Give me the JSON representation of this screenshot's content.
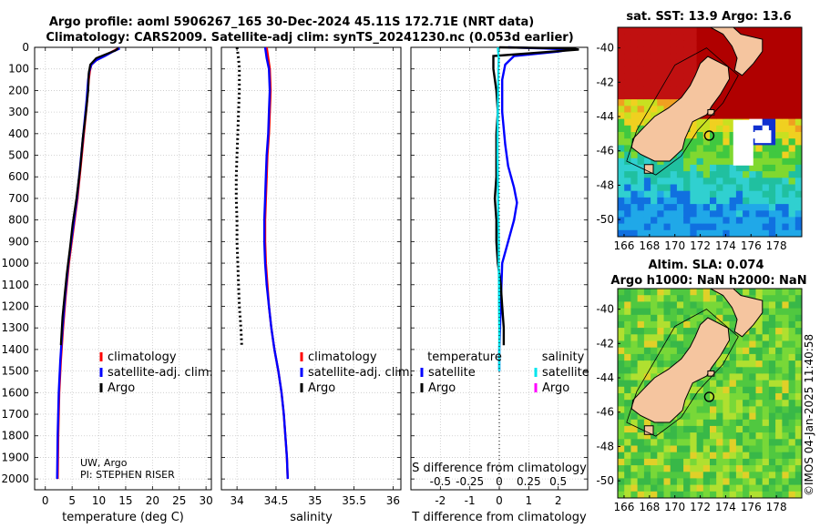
{
  "title_line1": "Argo profile: aoml 5906267_165 30-Dec-2024 45.11S 172.71E (NRT data)",
  "title_line2": "Climatology: CARS2009. Satellite-adj clim: synTS_20241230.nc (0.053d earlier)",
  "credit_lines": [
    "UW, Argo",
    "PI: STEPHEN RISER"
  ],
  "timestamp": "©IMOS 04-Jan-2025 11:40:58",
  "colors": {
    "climatology": "#ff0000",
    "satellite": "#0000ff",
    "argo": "#000000",
    "sat_salinity": "#00e5ee",
    "argo_salinity": "#ff00ff",
    "land": "#f5c59f"
  },
  "chart_data": [
    {
      "type": "line",
      "name": "temperature-profile",
      "xlabel": "temperature (deg C)",
      "xlim": [
        -2,
        31
      ],
      "xticks": [
        0,
        5,
        10,
        15,
        20,
        25,
        30
      ],
      "ylim": [
        0,
        2050
      ],
      "yticks": [
        0,
        100,
        200,
        300,
        400,
        500,
        600,
        700,
        800,
        900,
        1000,
        1100,
        1200,
        1300,
        1400,
        1500,
        1600,
        1700,
        1800,
        1900,
        2000
      ],
      "legend": [
        "climatology",
        "satellite-adj. clim.",
        "Argo"
      ],
      "series": [
        {
          "name": "climatology",
          "color": "#ff0000",
          "points": [
            [
              13.6,
              5
            ],
            [
              12.5,
              20
            ],
            [
              11.0,
              40
            ],
            [
              9.5,
              60
            ],
            [
              8.6,
              80
            ],
            [
              8.3,
              110
            ],
            [
              8.1,
              150
            ],
            [
              7.8,
              250
            ],
            [
              7.2,
              400
            ],
            [
              6.6,
              550
            ],
            [
              6.0,
              700
            ],
            [
              5.2,
              850
            ],
            [
              4.4,
              1000
            ],
            [
              3.8,
              1150
            ],
            [
              3.3,
              1300
            ],
            [
              2.9,
              1450
            ],
            [
              2.6,
              1600
            ],
            [
              2.4,
              1800
            ],
            [
              2.3,
              2000
            ]
          ]
        },
        {
          "name": "satellite-adj. clim.",
          "color": "#0000ff",
          "points": [
            [
              13.9,
              5
            ],
            [
              12.6,
              20
            ],
            [
              11.1,
              40
            ],
            [
              9.5,
              60
            ],
            [
              8.6,
              80
            ],
            [
              8.2,
              110
            ],
            [
              8.0,
              150
            ],
            [
              7.7,
              250
            ],
            [
              7.1,
              400
            ],
            [
              6.5,
              550
            ],
            [
              5.9,
              700
            ],
            [
              5.1,
              850
            ],
            [
              4.3,
              1000
            ],
            [
              3.7,
              1150
            ],
            [
              3.2,
              1300
            ],
            [
              2.8,
              1450
            ],
            [
              2.5,
              1600
            ],
            [
              2.3,
              1800
            ],
            [
              2.2,
              2000
            ]
          ]
        },
        {
          "name": "Argo",
          "color": "#000000",
          "points": [
            [
              13.6,
              5
            ],
            [
              13.0,
              15
            ],
            [
              11.5,
              30
            ],
            [
              9.5,
              50
            ],
            [
              8.4,
              80
            ],
            [
              8.1,
              120
            ],
            [
              8.0,
              200
            ],
            [
              7.6,
              300
            ],
            [
              7.0,
              420
            ],
            [
              6.5,
              560
            ],
            [
              5.8,
              700
            ],
            [
              5.1,
              820
            ],
            [
              4.6,
              930
            ],
            [
              4.0,
              1050
            ],
            [
              3.6,
              1150
            ],
            [
              3.2,
              1250
            ],
            [
              2.9,
              1380
            ]
          ]
        }
      ]
    },
    {
      "type": "line",
      "name": "salinity-profile",
      "xlabel": "salinity",
      "xlim": [
        33.8,
        36.1
      ],
      "xticks": [
        34,
        34.5,
        35,
        35.5,
        36
      ],
      "ylim": [
        0,
        2050
      ],
      "legend": [
        "climatology",
        "satellite-adj. clim.",
        "Argo"
      ],
      "series": [
        {
          "name": "climatology",
          "color": "#ff0000",
          "points": [
            [
              34.38,
              0
            ],
            [
              34.4,
              50
            ],
            [
              34.42,
              100
            ],
            [
              34.43,
              200
            ],
            [
              34.42,
              300
            ],
            [
              34.41,
              400
            ],
            [
              34.39,
              500
            ],
            [
              34.38,
              600
            ],
            [
              34.37,
              700
            ],
            [
              34.36,
              800
            ],
            [
              34.36,
              900
            ],
            [
              34.37,
              1000
            ],
            [
              34.39,
              1100
            ],
            [
              34.41,
              1200
            ],
            [
              34.44,
              1300
            ],
            [
              34.48,
              1400
            ],
            [
              34.53,
              1500
            ],
            [
              34.57,
              1600
            ],
            [
              34.6,
              1700
            ],
            [
              34.62,
              1800
            ],
            [
              34.64,
              1900
            ],
            [
              34.65,
              2000
            ]
          ]
        },
        {
          "name": "satellite-adj. clim.",
          "color": "#0000ff",
          "points": [
            [
              34.36,
              0
            ],
            [
              34.38,
              50
            ],
            [
              34.41,
              100
            ],
            [
              34.42,
              200
            ],
            [
              34.41,
              300
            ],
            [
              34.4,
              400
            ],
            [
              34.38,
              500
            ],
            [
              34.37,
              600
            ],
            [
              34.36,
              700
            ],
            [
              34.35,
              800
            ],
            [
              34.35,
              900
            ],
            [
              34.36,
              1000
            ],
            [
              34.38,
              1100
            ],
            [
              34.41,
              1200
            ],
            [
              34.44,
              1300
            ],
            [
              34.48,
              1400
            ],
            [
              34.53,
              1500
            ],
            [
              34.57,
              1600
            ],
            [
              34.6,
              1700
            ],
            [
              34.62,
              1800
            ],
            [
              34.64,
              1900
            ],
            [
              34.65,
              2000
            ]
          ]
        },
        {
          "name": "Argo",
          "color": "#000000",
          "dashed": true,
          "points": [
            [
              34.0,
              0
            ],
            [
              34.02,
              50
            ],
            [
              34.03,
              100
            ],
            [
              34.03,
              200
            ],
            [
              34.02,
              300
            ],
            [
              34.01,
              400
            ],
            [
              34.0,
              500
            ],
            [
              33.99,
              600
            ],
            [
              33.99,
              700
            ],
            [
              34.0,
              800
            ],
            [
              34.0,
              900
            ],
            [
              34.01,
              1000
            ],
            [
              34.02,
              1100
            ],
            [
              34.03,
              1200
            ],
            [
              34.05,
              1300
            ],
            [
              34.06,
              1380
            ]
          ]
        }
      ]
    },
    {
      "type": "line",
      "name": "difference-profile",
      "xlabel": "T difference from climatology",
      "xlabel_top": "S difference from climatology",
      "xlim": [
        -3,
        3
      ],
      "xticks": [
        -2,
        -1,
        0,
        1,
        2
      ],
      "xtick_labels_top": [
        "-0.5",
        "-0.25",
        "0",
        "0.25",
        "0.5"
      ],
      "ylim": [
        0,
        2050
      ],
      "legend_headers": [
        "temperature",
        "salinity"
      ],
      "legend_temperature": [
        "satellite",
        "Argo"
      ],
      "legend_salinity": [
        "satellite",
        "Argo"
      ],
      "series": [
        {
          "name": "temperature satellite",
          "color": "#0000ff",
          "points": [
            [
              0.3,
              0
            ],
            [
              1.5,
              5
            ],
            [
              2.4,
              10
            ],
            [
              2.0,
              20
            ],
            [
              0.5,
              40
            ],
            [
              0.2,
              80
            ],
            [
              0.1,
              150
            ],
            [
              0.1,
              300
            ],
            [
              0.2,
              450
            ],
            [
              0.3,
              550
            ],
            [
              0.5,
              650
            ],
            [
              0.6,
              720
            ],
            [
              0.5,
              800
            ],
            [
              0.3,
              900
            ],
            [
              0.1,
              1000
            ],
            [
              0.05,
              1200
            ],
            [
              0,
              1400
            ],
            [
              0,
              1500
            ]
          ]
        },
        {
          "name": "temperature Argo",
          "color": "#000000",
          "points": [
            [
              0.0,
              0
            ],
            [
              2.5,
              5
            ],
            [
              2.7,
              10
            ],
            [
              1.8,
              20
            ],
            [
              -0.2,
              40
            ],
            [
              -0.2,
              100
            ],
            [
              -0.1,
              200
            ],
            [
              -0.05,
              300
            ],
            [
              -0.1,
              400
            ],
            [
              -0.1,
              500
            ],
            [
              -0.1,
              600
            ],
            [
              -0.15,
              700
            ],
            [
              -0.1,
              800
            ],
            [
              -0.1,
              900
            ],
            [
              -0.05,
              1000
            ],
            [
              0.05,
              1100
            ],
            [
              0.1,
              1200
            ],
            [
              0.15,
              1300
            ],
            [
              0.15,
              1380
            ]
          ]
        },
        {
          "name": "salinity satellite",
          "color": "#00e5ee",
          "points": [
            [
              -0.05,
              0
            ],
            [
              -0.02,
              50
            ],
            [
              -0.03,
              100
            ],
            [
              -0.04,
              200
            ],
            [
              -0.05,
              300
            ],
            [
              -0.06,
              400
            ],
            [
              -0.06,
              500
            ],
            [
              -0.05,
              600
            ],
            [
              -0.04,
              700
            ],
            [
              -0.03,
              800
            ],
            [
              -0.02,
              900
            ],
            [
              -0.02,
              1000
            ],
            [
              -0.01,
              1100
            ],
            [
              -0.01,
              1200
            ],
            [
              0,
              1300
            ],
            [
              0,
              1400
            ],
            [
              0,
              1500
            ]
          ]
        },
        {
          "name": "salinity Argo",
          "color": "#ff00ff",
          "points": [
            [
              0,
              0
            ]
          ]
        }
      ]
    },
    {
      "type": "heatmap",
      "name": "sst-map",
      "title": "sat. SST: 13.9 Argo: 13.6",
      "xticks": [
        166,
        168,
        170,
        172,
        174,
        176,
        178
      ],
      "yticks": [
        -40,
        -42,
        -44,
        -46,
        -48,
        -50
      ],
      "xlim": [
        165.5,
        180
      ],
      "ylim": [
        -51,
        -38.8
      ],
      "argo_location": [
        172.71,
        -45.11
      ]
    },
    {
      "type": "heatmap",
      "name": "sla-map",
      "title": "Altim. SLA: 0.074",
      "subtitle": "Argo h1000: NaN h2000: NaN",
      "xticks": [
        166,
        168,
        170,
        172,
        174,
        176,
        178
      ],
      "yticks": [
        -40,
        -42,
        -44,
        -46,
        -48,
        -50
      ],
      "xlim": [
        165.5,
        180
      ],
      "ylim": [
        -51,
        -38.8
      ],
      "argo_location": [
        172.71,
        -45.11
      ]
    }
  ]
}
